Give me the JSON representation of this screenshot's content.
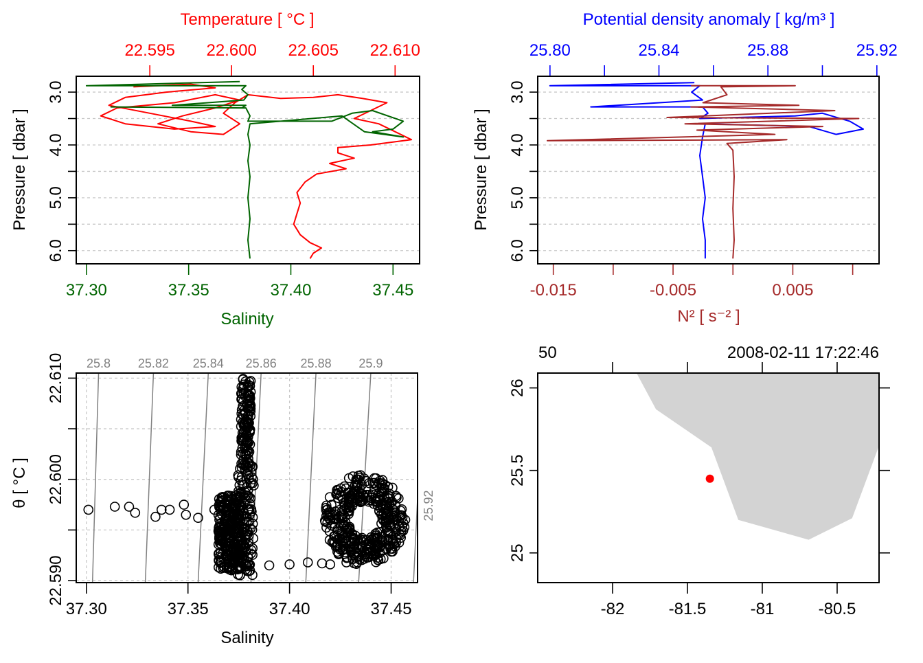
{
  "colors": {
    "temperature": "#ff0000",
    "salinity": "#006400",
    "density": "#0000ff",
    "n2": "#a52a2a",
    "isopycnal": "#808080",
    "land": "#d3d3d3",
    "station": "#ff0000",
    "axis": "#000000"
  },
  "chart_data": [
    {
      "id": "panel-ts-profile",
      "type": "line",
      "title": "",
      "top_axis": {
        "label": "Temperature [ °C ]",
        "ticks": [
          22.595,
          22.6,
          22.605,
          22.61
        ],
        "tick_labels": [
          "22.595",
          "22.600",
          "22.605",
          "22.610"
        ],
        "range": [
          22.5905,
          22.6115
        ]
      },
      "bottom_axis": {
        "label": "Salinity",
        "ticks": [
          37.3,
          37.35,
          37.4,
          37.45
        ],
        "tick_labels": [
          "37.30",
          "37.35",
          "37.40",
          "37.45"
        ],
        "range": [
          37.295,
          37.463
        ]
      },
      "yaxis": {
        "label": "Pressure [ dbar ]",
        "ticks": [
          3.0,
          3.5,
          4.0,
          4.5,
          5.0,
          5.5,
          6.0
        ],
        "tick_labels": [
          "3.0",
          "",
          "4.0",
          "",
          "5.0",
          "",
          "6.0"
        ],
        "range": [
          6.25,
          2.7
        ],
        "reversed": true
      },
      "grid": true,
      "series": [
        {
          "name": "Temperature",
          "axis": "top",
          "color_key": "temperature",
          "points": [
            [
              22.594,
              2.9
            ],
            [
              22.5975,
              2.85
            ],
            [
              22.599,
              2.92
            ],
            [
              22.596,
              3.0
            ],
            [
              22.5935,
              3.1
            ],
            [
              22.5925,
              3.25
            ],
            [
              22.595,
              3.4
            ],
            [
              22.5975,
              3.55
            ],
            [
              22.599,
              3.65
            ],
            [
              22.5965,
              3.7
            ],
            [
              22.5935,
              3.6
            ],
            [
              22.592,
              3.45
            ],
            [
              22.593,
              3.3
            ],
            [
              22.5965,
              3.2
            ],
            [
              22.599,
              3.05
            ],
            [
              22.6005,
              3.15
            ],
            [
              22.599,
              3.3
            ],
            [
              22.597,
              3.45
            ],
            [
              22.5955,
              3.6
            ],
            [
              22.5975,
              3.75
            ],
            [
              22.5995,
              3.8
            ],
            [
              22.6005,
              3.6
            ],
            [
              22.5995,
              3.4
            ],
            [
              22.6002,
              3.2
            ],
            [
              22.601,
              3.05
            ],
            [
              22.603,
              3.12
            ],
            [
              22.605,
              3.1
            ],
            [
              22.6065,
              3.05
            ],
            [
              22.608,
              3.12
            ],
            [
              22.6095,
              3.2
            ],
            [
              22.6085,
              3.35
            ],
            [
              22.6075,
              3.5
            ],
            [
              22.609,
              3.6
            ],
            [
              22.61,
              3.75
            ],
            [
              22.611,
              3.9
            ],
            [
              22.6085,
              4.0
            ],
            [
              22.6065,
              4.05
            ],
            [
              22.6065,
              4.15
            ],
            [
              22.6075,
              4.25
            ],
            [
              22.606,
              4.35
            ],
            [
              22.607,
              4.45
            ],
            [
              22.6052,
              4.55
            ],
            [
              22.6045,
              4.7
            ],
            [
              22.604,
              4.9
            ],
            [
              22.6042,
              5.1
            ],
            [
              22.604,
              5.3
            ],
            [
              22.6038,
              5.5
            ],
            [
              22.6042,
              5.7
            ],
            [
              22.6048,
              5.85
            ],
            [
              22.6055,
              5.95
            ],
            [
              22.605,
              6.05
            ],
            [
              22.6048,
              6.15
            ]
          ]
        },
        {
          "name": "Salinity",
          "axis": "bottom",
          "color_key": "salinity",
          "points": [
            [
              37.375,
              2.8
            ],
            [
              37.3,
              2.88
            ],
            [
              37.378,
              2.88
            ],
            [
              37.376,
              2.95
            ],
            [
              37.379,
              3.05
            ],
            [
              37.377,
              3.15
            ],
            [
              37.342,
              3.25
            ],
            [
              37.378,
              3.25
            ],
            [
              37.376,
              3.3
            ],
            [
              37.312,
              3.28
            ],
            [
              37.378,
              3.3
            ],
            [
              37.38,
              3.45
            ],
            [
              37.379,
              3.55
            ],
            [
              37.42,
              3.55
            ],
            [
              37.43,
              3.4
            ],
            [
              37.44,
              3.35
            ],
            [
              37.455,
              3.55
            ],
            [
              37.45,
              3.7
            ],
            [
              37.44,
              3.75
            ],
            [
              37.455,
              3.85
            ],
            [
              37.436,
              3.75
            ],
            [
              37.425,
              3.45
            ],
            [
              37.38,
              3.6
            ],
            [
              37.379,
              3.8
            ],
            [
              37.38,
              4.0
            ],
            [
              37.379,
              4.3
            ],
            [
              37.38,
              4.6
            ],
            [
              37.379,
              5.0
            ],
            [
              37.38,
              5.4
            ],
            [
              37.379,
              5.8
            ],
            [
              37.38,
              6.15
            ]
          ]
        }
      ]
    },
    {
      "id": "panel-density-n2-profile",
      "type": "line",
      "top_axis": {
        "label": "Potential density anomaly [ kg/m³ ]",
        "ticks": [
          25.8,
          25.82,
          25.84,
          25.86,
          25.88,
          25.9,
          25.92
        ],
        "tick_labels": [
          "25.80",
          "",
          "25.84",
          "",
          "25.88",
          "",
          "25.92"
        ],
        "range": [
          25.7955,
          25.9208
        ]
      },
      "bottom_axis": {
        "label": "N² [ s⁻² ]",
        "ticks": [
          -0.015,
          -0.01,
          -0.005,
          0.0,
          0.005,
          0.01
        ],
        "tick_labels": [
          "-0.015",
          "",
          "-0.005",
          "",
          "0.005",
          ""
        ],
        "range": [
          -0.0163,
          0.0122
        ]
      },
      "yaxis": {
        "label": "Pressure [ dbar ]",
        "ticks": [
          3.0,
          3.5,
          4.0,
          4.5,
          5.0,
          5.5,
          6.0
        ],
        "tick_labels": [
          "3.0",
          "",
          "4.0",
          "",
          "5.0",
          "",
          "6.0"
        ],
        "range": [
          6.25,
          2.7
        ],
        "reversed": true
      },
      "grid": true,
      "series": [
        {
          "name": "Potential density anomaly",
          "axis": "top",
          "color_key": "density",
          "points": [
            [
              25.853,
              2.82
            ],
            [
              25.8,
              2.88
            ],
            [
              25.855,
              2.88
            ],
            [
              25.852,
              3.0
            ],
            [
              25.856,
              3.15
            ],
            [
              25.815,
              3.28
            ],
            [
              25.856,
              3.28
            ],
            [
              25.858,
              3.4
            ],
            [
              25.855,
              3.5
            ],
            [
              25.89,
              3.45
            ],
            [
              25.9,
              3.4
            ],
            [
              25.91,
              3.55
            ],
            [
              25.915,
              3.7
            ],
            [
              25.905,
              3.8
            ],
            [
              25.895,
              3.65
            ],
            [
              25.857,
              3.6
            ],
            [
              25.856,
              3.85
            ],
            [
              25.855,
              4.2
            ],
            [
              25.856,
              4.6
            ],
            [
              25.857,
              5.0
            ],
            [
              25.856,
              5.4
            ],
            [
              25.857,
              5.8
            ],
            [
              25.857,
              6.15
            ]
          ]
        },
        {
          "name": "N²",
          "axis": "bottom",
          "color_key": "n2",
          "points": [
            [
              -0.0035,
              2.88
            ],
            [
              0.0052,
              2.88
            ],
            [
              -0.001,
              2.9
            ],
            [
              -0.0005,
              3.05
            ],
            [
              -0.0025,
              3.2
            ],
            [
              0.0055,
              3.25
            ],
            [
              -0.0035,
              3.28
            ],
            [
              0.0085,
              3.35
            ],
            [
              -0.0055,
              3.48
            ],
            [
              0.0105,
              3.5
            ],
            [
              -0.004,
              3.6
            ],
            [
              0.0075,
              3.65
            ],
            [
              -0.003,
              3.72
            ],
            [
              0.0035,
              3.8
            ],
            [
              -0.0155,
              3.92
            ],
            [
              0.0045,
              3.9
            ],
            [
              -0.0005,
              3.97
            ],
            [
              0.0,
              4.1
            ],
            [
              0.0001,
              4.6
            ],
            [
              0.0,
              5.2
            ],
            [
              0.0001,
              5.8
            ],
            [
              0.0,
              6.15
            ]
          ]
        }
      ]
    },
    {
      "id": "panel-ts-diagram",
      "type": "scatter",
      "xaxis": {
        "label": "Salinity",
        "ticks": [
          37.3,
          37.35,
          37.4,
          37.45
        ],
        "tick_labels": [
          "37.30",
          "37.35",
          "37.40",
          "37.45"
        ],
        "range": [
          37.295,
          37.463
        ]
      },
      "yaxis": {
        "label": "θ [ °C ]",
        "ticks": [
          22.59,
          22.595,
          22.6,
          22.605,
          22.61
        ],
        "tick_labels": [
          "22.590",
          "",
          "22.600",
          "",
          "22.610"
        ],
        "range": [
          22.5898,
          22.6105
        ]
      },
      "grid": true,
      "isopycnals": {
        "labels": [
          "25.8",
          "25.82",
          "25.84",
          "25.86",
          "25.88",
          "25.9",
          "25.92"
        ],
        "values": [
          25.8,
          25.82,
          25.84,
          25.86,
          25.88,
          25.9,
          25.92
        ]
      },
      "points": [
        [
          37.301,
          22.597
        ],
        [
          37.314,
          22.5973
        ],
        [
          37.321,
          22.5973
        ],
        [
          37.324,
          22.5967
        ],
        [
          37.334,
          22.5963
        ],
        [
          37.337,
          22.597
        ],
        [
          37.341,
          22.597
        ],
        [
          37.348,
          22.5975
        ],
        [
          37.349,
          22.5965
        ],
        [
          37.355,
          22.5962
        ],
        [
          37.363,
          22.597
        ],
        [
          37.367,
          22.5975
        ],
        [
          37.37,
          22.598
        ],
        [
          37.38,
          22.5915
        ],
        [
          37.39,
          22.5915
        ],
        [
          37.4,
          22.5916
        ],
        [
          37.409,
          22.5918
        ],
        [
          37.416,
          22.5917
        ],
        [
          37.42,
          22.5916
        ],
        [
          37.428,
          22.5918
        ]
      ],
      "dense_clusters": [
        {
          "s_range": [
            37.374,
            37.382
          ],
          "t_range": [
            22.5905,
            22.61
          ]
        },
        {
          "s_range": [
            37.365,
            37.376
          ],
          "t_range": [
            22.591,
            22.5985
          ]
        },
        {
          "s_range": [
            37.415,
            37.458
          ],
          "t_range": [
            22.5915,
            22.601
          ]
        }
      ]
    },
    {
      "id": "panel-map",
      "type": "map",
      "xaxis": {
        "ticks": [
          -82,
          -81.5,
          -81,
          -80.5
        ],
        "tick_labels": [
          "-82",
          "-81.5",
          "-81",
          "-80.5"
        ],
        "range": [
          -82.5,
          -80.22
        ]
      },
      "yaxis": {
        "ticks": [
          25,
          25.5,
          26
        ],
        "tick_labels": [
          "25",
          "25.5",
          "26"
        ],
        "range": [
          24.82,
          26.09
        ]
      },
      "top_labels": {
        "left": "50",
        "right": "2008-02-11 17:22:46"
      },
      "coastline_polygon": [
        [
          -81.84,
          26.09
        ],
        [
          -81.71,
          25.87
        ],
        [
          -81.34,
          25.64
        ],
        [
          -81.16,
          25.2
        ],
        [
          -80.69,
          25.08
        ],
        [
          -80.4,
          25.21
        ],
        [
          -80.22,
          25.65
        ],
        [
          -80.22,
          26.09
        ]
      ],
      "station": {
        "lon": -81.35,
        "lat": 25.45
      }
    }
  ]
}
